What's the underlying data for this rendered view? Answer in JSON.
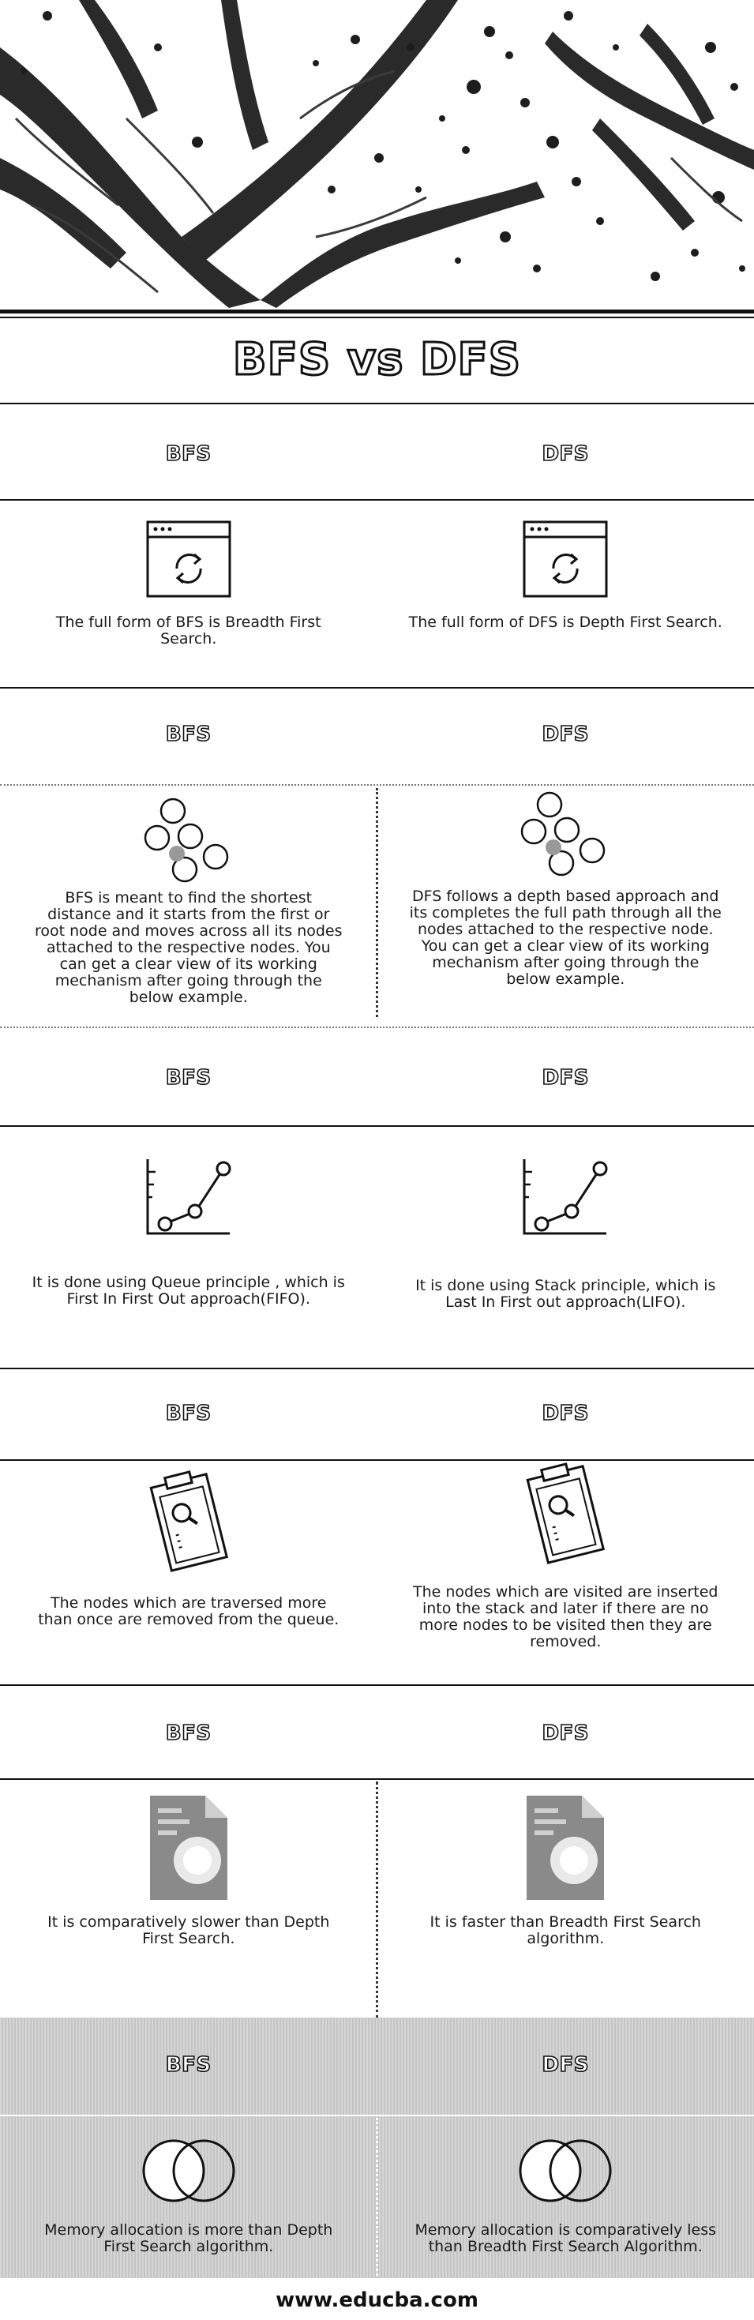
{
  "title": "BFS vs DFS",
  "sections": [
    {
      "left_label": "BFS",
      "right_label": "DFS",
      "icon": "browser-refresh-icon",
      "left_text": "The full form of BFS is Breadth First Search.",
      "right_text": "The full form of DFS is Depth First Search."
    },
    {
      "left_label": "BFS",
      "right_label": "DFS",
      "icon": "node-graph-icon",
      "left_text": "BFS is meant to find the shortest distance and it starts from the first or root node and moves across all its nodes attached to the respective nodes. You can get a clear view of its working mechanism after going through the below example.",
      "right_text": "DFS follows a depth based approach and its completes the full path through all the nodes attached to the respective node. You can get a clear view of its working mechanism after going through the below example."
    },
    {
      "left_label": "BFS",
      "right_label": "DFS",
      "icon": "line-chart-icon",
      "left_text": "It is done using Queue principle , which is First In First Out approach(FIFO).",
      "right_text": "It is done using Stack principle, which is Last In First out approach(LIFO)."
    },
    {
      "left_label": "BFS",
      "right_label": "DFS",
      "icon": "clipboard-search-icon",
      "left_text": "The nodes which are traversed more than once are removed from the queue.",
      "right_text": "The nodes which are visited are inserted into the stack and later if there are no more nodes to be visited then they are removed."
    },
    {
      "left_label": "BFS",
      "right_label": "DFS",
      "icon": "document-icon",
      "left_text": "It is comparatively slower than Depth First Search.",
      "right_text": "It is faster than Breadth First Search algorithm."
    },
    {
      "left_label": "BFS",
      "right_label": "DFS",
      "icon": "venn-circles-icon",
      "left_text": "Memory allocation is more than Depth First Search algorithm.",
      "right_text": "Memory allocation is comparatively less than Breadth First Search Algorithm."
    }
  ],
  "footer": "www.educba.com"
}
